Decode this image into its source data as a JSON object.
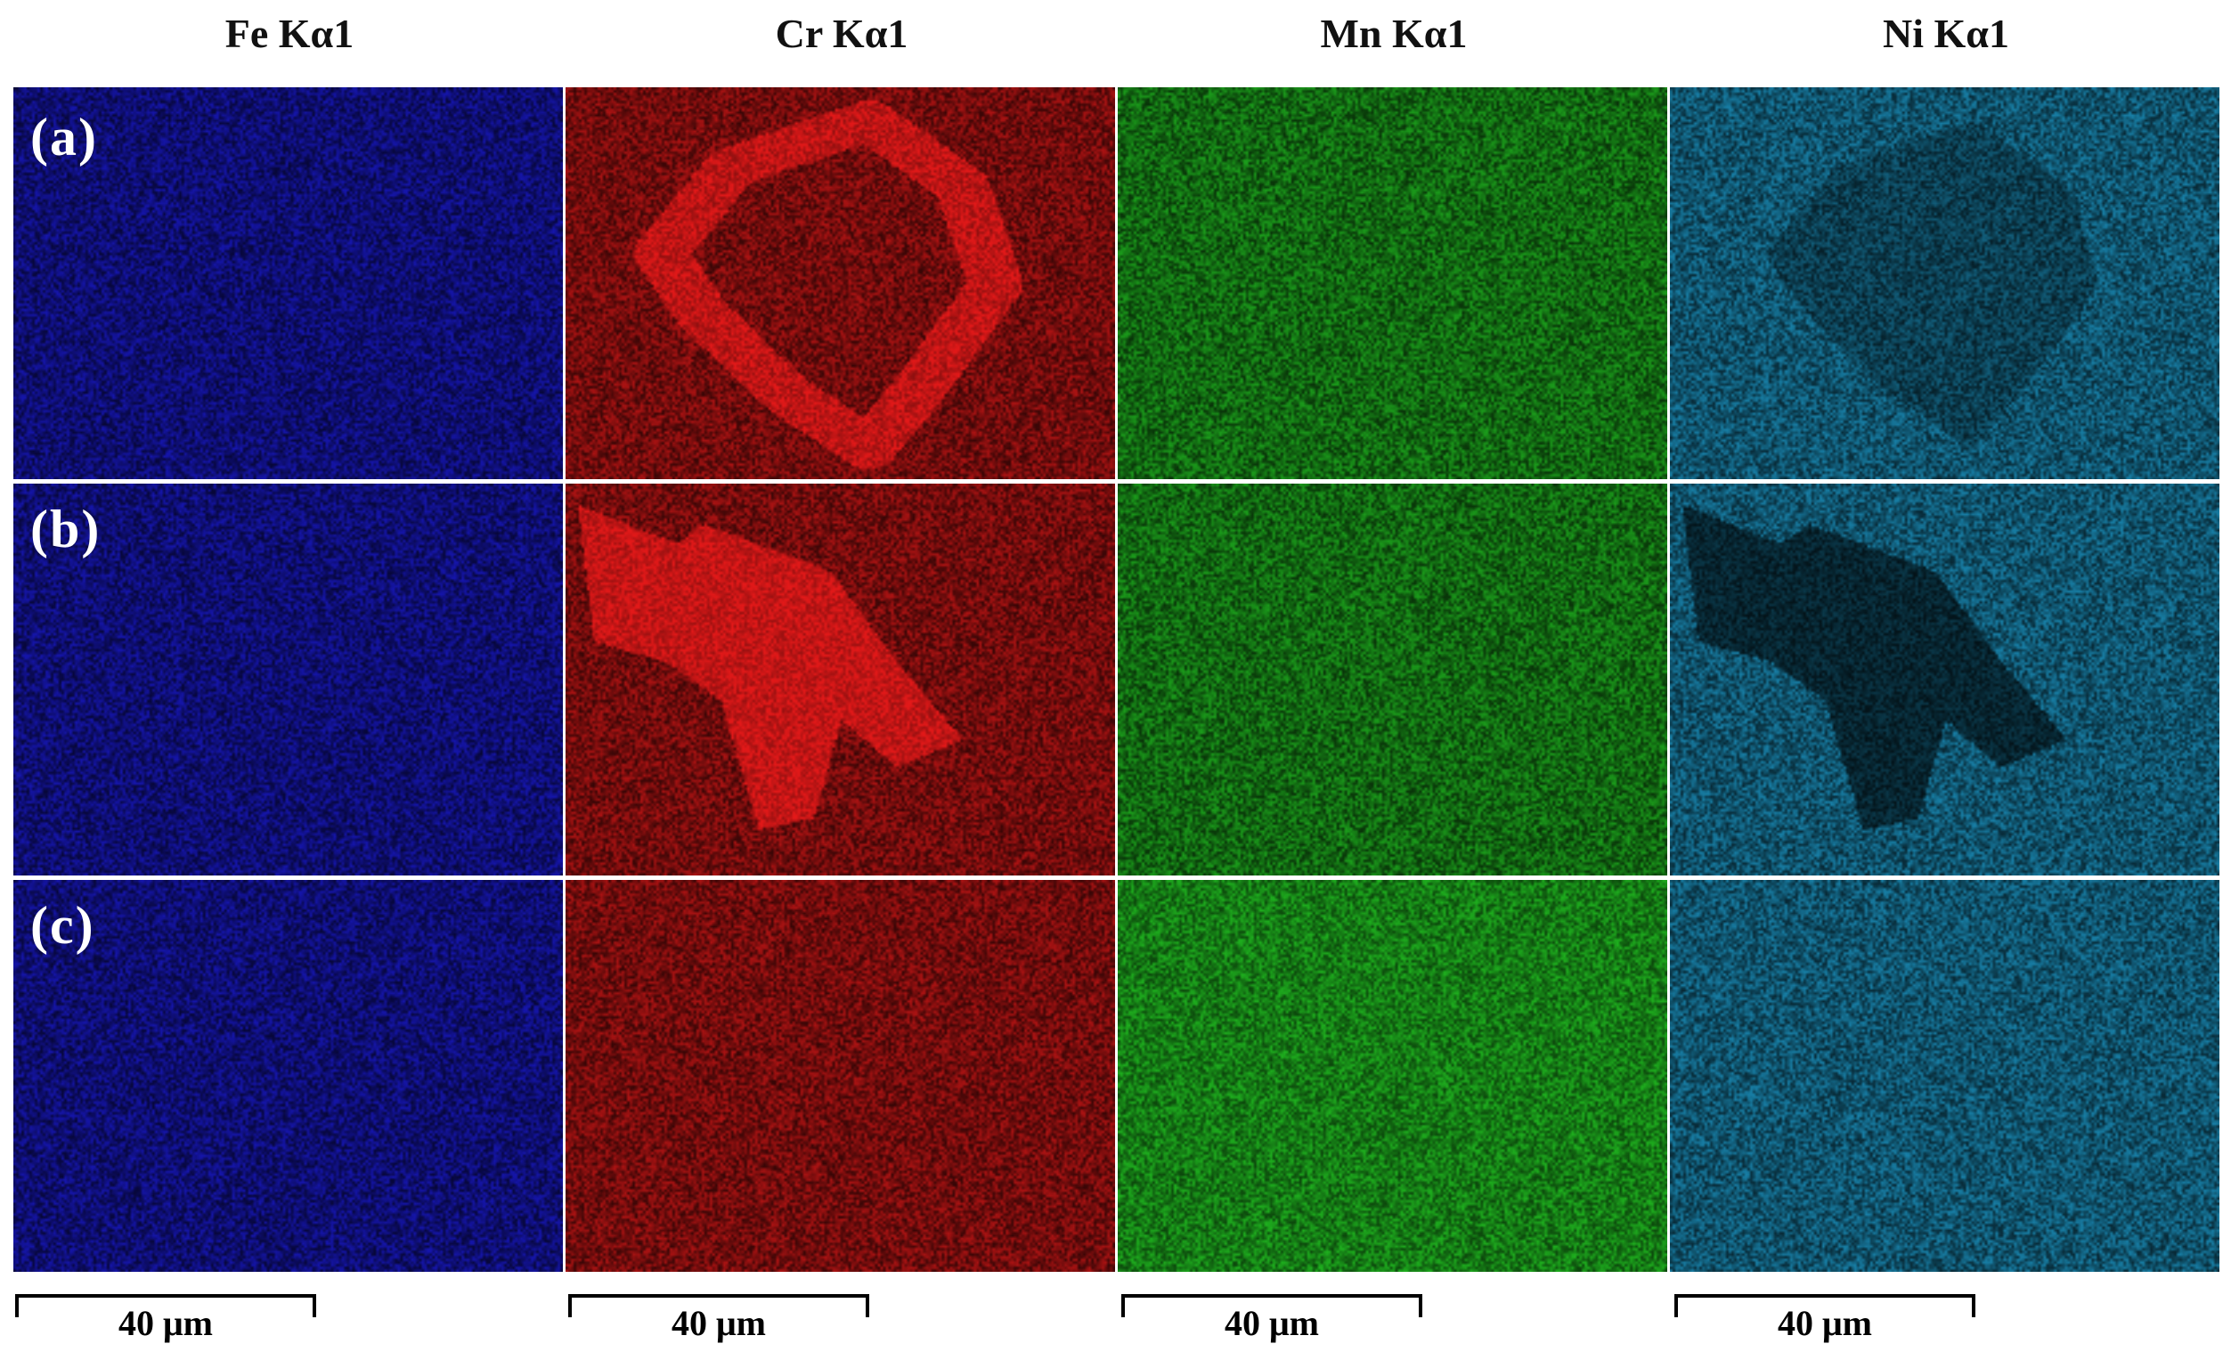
{
  "columns": [
    {
      "element": "Fe Kα1",
      "color": "#1b1bd8"
    },
    {
      "element": "Cr Kα1",
      "color": "#d81818"
    },
    {
      "element": "Mn Kα1",
      "color": "#22c422"
    },
    {
      "element": "Ni Kα1",
      "color": "#1e9fd0"
    }
  ],
  "rows": [
    {
      "label": "(a)"
    },
    {
      "label": "(b)"
    },
    {
      "label": "(c)"
    }
  ],
  "scale_bars": [
    {
      "label": "40 μm"
    },
    {
      "label": "40 μm"
    },
    {
      "label": "40 μm"
    },
    {
      "label": "40 μm"
    }
  ]
}
